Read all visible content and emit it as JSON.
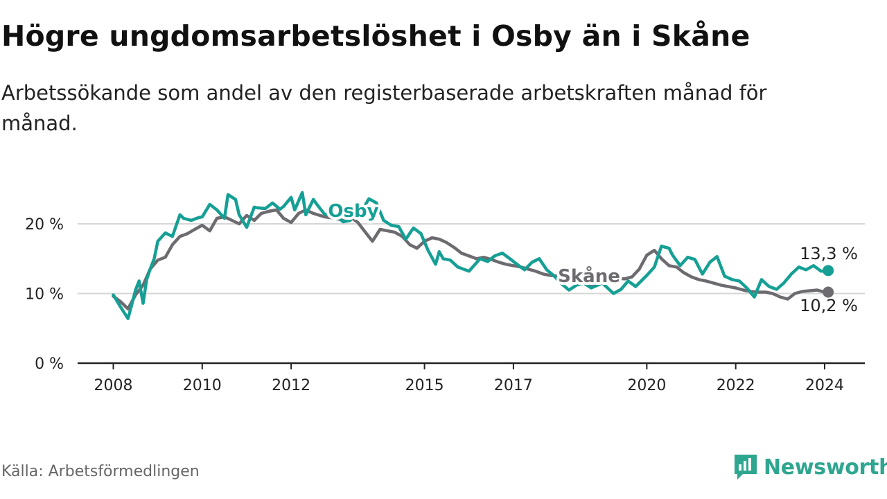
{
  "title": "Högre ungdomsarbetslöshet i Osby än i Skåne",
  "subtitle": "Arbetssökande som andel av den registerbaserade arbetskraften månad för månad.",
  "source": "Källa: Arbetsförmedlingen",
  "brand": "Newsworthy",
  "colors": {
    "osby": "#16a095",
    "skane": "#6e6b70",
    "grid": "#d6d6d6",
    "axis": "#222222"
  },
  "chart_data": {
    "type": "line",
    "title": "Högre ungdomsarbetslöshet i Osby än i Skåne",
    "xlabel": "",
    "ylabel": "",
    "xlim": [
      2008,
      2024.2
    ],
    "ylim": [
      0,
      25
    ],
    "y_ticks": [
      0,
      10,
      20
    ],
    "y_tick_labels": [
      "0 %",
      "10 %",
      "20 %"
    ],
    "x_ticks": [
      2008,
      2010,
      2012,
      2015,
      2017,
      2020,
      2022,
      2024
    ],
    "x_tick_labels": [
      "2008",
      "2010",
      "2012",
      "2015",
      "2017",
      "2020",
      "2022",
      "2024"
    ],
    "series": [
      {
        "name": "Osby",
        "color": "#16a095",
        "end_label": "13,3 %",
        "x": [
          2008.0,
          2008.17,
          2008.25,
          2008.33,
          2008.42,
          2008.5,
          2008.58,
          2008.67,
          2008.75,
          2008.83,
          2008.92,
          2009.0,
          2009.17,
          2009.33,
          2009.5,
          2009.58,
          2009.75,
          2009.92,
          2010.0,
          2010.17,
          2010.33,
          2010.5,
          2010.58,
          2010.75,
          2010.83,
          2011.0,
          2011.17,
          2011.25,
          2011.42,
          2011.58,
          2011.75,
          2011.83,
          2012.0,
          2012.08,
          2012.25,
          2012.33,
          2012.5,
          2012.58,
          2012.75,
          2013.0,
          2013.17,
          2013.33,
          2013.42,
          2013.58,
          2013.75,
          2013.92,
          2014.08,
          2014.25,
          2014.42,
          2014.58,
          2014.75,
          2014.92,
          2015.08,
          2015.25,
          2015.33,
          2015.42,
          2015.58,
          2015.75,
          2016.0,
          2016.25,
          2016.42,
          2016.58,
          2016.75,
          2016.92,
          2017.08,
          2017.25,
          2017.42,
          2017.58,
          2017.75,
          2017.92,
          2018.08,
          2018.25,
          2018.42,
          2018.58,
          2018.75,
          2019.0,
          2019.25,
          2019.42,
          2019.58,
          2019.75,
          2020.0,
          2020.17,
          2020.33,
          2020.5,
          2020.58,
          2020.75,
          2020.92,
          2021.08,
          2021.25,
          2021.42,
          2021.58,
          2021.75,
          2021.92,
          2022.08,
          2022.25,
          2022.42,
          2022.58,
          2022.75,
          2022.92,
          2023.08,
          2023.25,
          2023.42,
          2023.58,
          2023.75,
          2023.92,
          2024.08
        ],
        "y": [
          9.8,
          8.0,
          7.2,
          6.4,
          8.5,
          10.5,
          11.8,
          8.6,
          12.0,
          13.5,
          15.0,
          17.5,
          18.7,
          18.2,
          21.3,
          20.8,
          20.5,
          20.9,
          21.0,
          22.8,
          22.0,
          20.8,
          24.2,
          23.5,
          21.3,
          19.5,
          22.4,
          22.3,
          22.2,
          23.0,
          22.1,
          22.5,
          23.8,
          22.0,
          24.5,
          21.3,
          23.5,
          22.8,
          21.4,
          21.2,
          20.3,
          20.5,
          22.5,
          21.8,
          23.6,
          23.0,
          20.5,
          19.8,
          19.6,
          17.8,
          19.4,
          18.6,
          16.2,
          14.2,
          16.0,
          15.0,
          14.8,
          13.8,
          13.2,
          15.0,
          14.6,
          15.4,
          15.8,
          15.0,
          14.2,
          13.4,
          14.5,
          15.0,
          13.4,
          12.5,
          11.4,
          10.5,
          11.2,
          11.5,
          10.8,
          11.5,
          10.0,
          10.6,
          11.8,
          11.0,
          12.6,
          13.8,
          16.8,
          16.5,
          15.5,
          14.0,
          15.2,
          14.9,
          12.8,
          14.5,
          15.3,
          12.5,
          12.0,
          11.8,
          10.8,
          9.5,
          12.0,
          11.0,
          10.6,
          11.5,
          12.8,
          13.8,
          13.4,
          14.0,
          13.2,
          13.3
        ]
      },
      {
        "name": "Skåne",
        "color": "#6e6b70",
        "end_label": "10,2 %",
        "x": [
          2008.0,
          2008.17,
          2008.33,
          2008.5,
          2008.67,
          2008.83,
          2009.0,
          2009.17,
          2009.33,
          2009.5,
          2009.67,
          2009.83,
          2010.0,
          2010.17,
          2010.33,
          2010.5,
          2010.67,
          2010.83,
          2011.0,
          2011.17,
          2011.33,
          2011.5,
          2011.67,
          2011.83,
          2012.0,
          2012.17,
          2012.33,
          2012.5,
          2012.75,
          2013.0,
          2013.17,
          2013.33,
          2013.5,
          2013.67,
          2013.83,
          2014.0,
          2014.17,
          2014.33,
          2014.5,
          2014.67,
          2014.83,
          2015.0,
          2015.17,
          2015.33,
          2015.5,
          2015.67,
          2015.83,
          2016.0,
          2016.17,
          2016.33,
          2016.5,
          2016.67,
          2016.83,
          2017.0,
          2017.17,
          2017.33,
          2017.5,
          2017.67,
          2017.83,
          2018.0,
          2018.17,
          2018.33,
          2018.5,
          2018.67,
          2018.83,
          2019.0,
          2019.17,
          2019.33,
          2019.5,
          2019.67,
          2019.83,
          2020.0,
          2020.17,
          2020.33,
          2020.5,
          2020.67,
          2020.83,
          2021.0,
          2021.17,
          2021.33,
          2021.5,
          2021.67,
          2021.83,
          2022.0,
          2022.17,
          2022.33,
          2022.5,
          2022.67,
          2022.83,
          2023.0,
          2023.17,
          2023.33,
          2023.5,
          2023.67,
          2023.83,
          2024.0,
          2024.08
        ],
        "y": [
          9.6,
          8.8,
          7.8,
          9.8,
          11.2,
          13.5,
          14.8,
          15.2,
          17.0,
          18.2,
          18.6,
          19.2,
          19.8,
          19.0,
          20.8,
          21.0,
          20.5,
          20.0,
          21.2,
          20.5,
          21.5,
          21.8,
          22.0,
          20.8,
          20.2,
          21.5,
          22.0,
          21.5,
          21.0,
          20.8,
          20.5,
          21.0,
          20.2,
          18.8,
          17.5,
          19.2,
          19.0,
          18.8,
          18.2,
          17.0,
          16.5,
          17.5,
          18.0,
          17.8,
          17.3,
          16.6,
          15.8,
          15.4,
          15.0,
          15.2,
          14.9,
          14.5,
          14.2,
          14.0,
          13.8,
          13.5,
          13.2,
          12.8,
          12.6,
          12.5,
          12.2,
          11.9,
          11.6,
          11.4,
          11.2,
          11.5,
          12.0,
          12.2,
          12.1,
          12.4,
          13.5,
          15.5,
          16.2,
          15.0,
          14.0,
          13.8,
          13.0,
          12.4,
          12.0,
          11.8,
          11.5,
          11.2,
          11.0,
          10.8,
          10.5,
          10.3,
          10.2,
          10.2,
          10.0,
          9.5,
          9.2,
          10.0,
          10.3,
          10.4,
          10.5,
          10.2,
          10.2
        ]
      }
    ]
  }
}
